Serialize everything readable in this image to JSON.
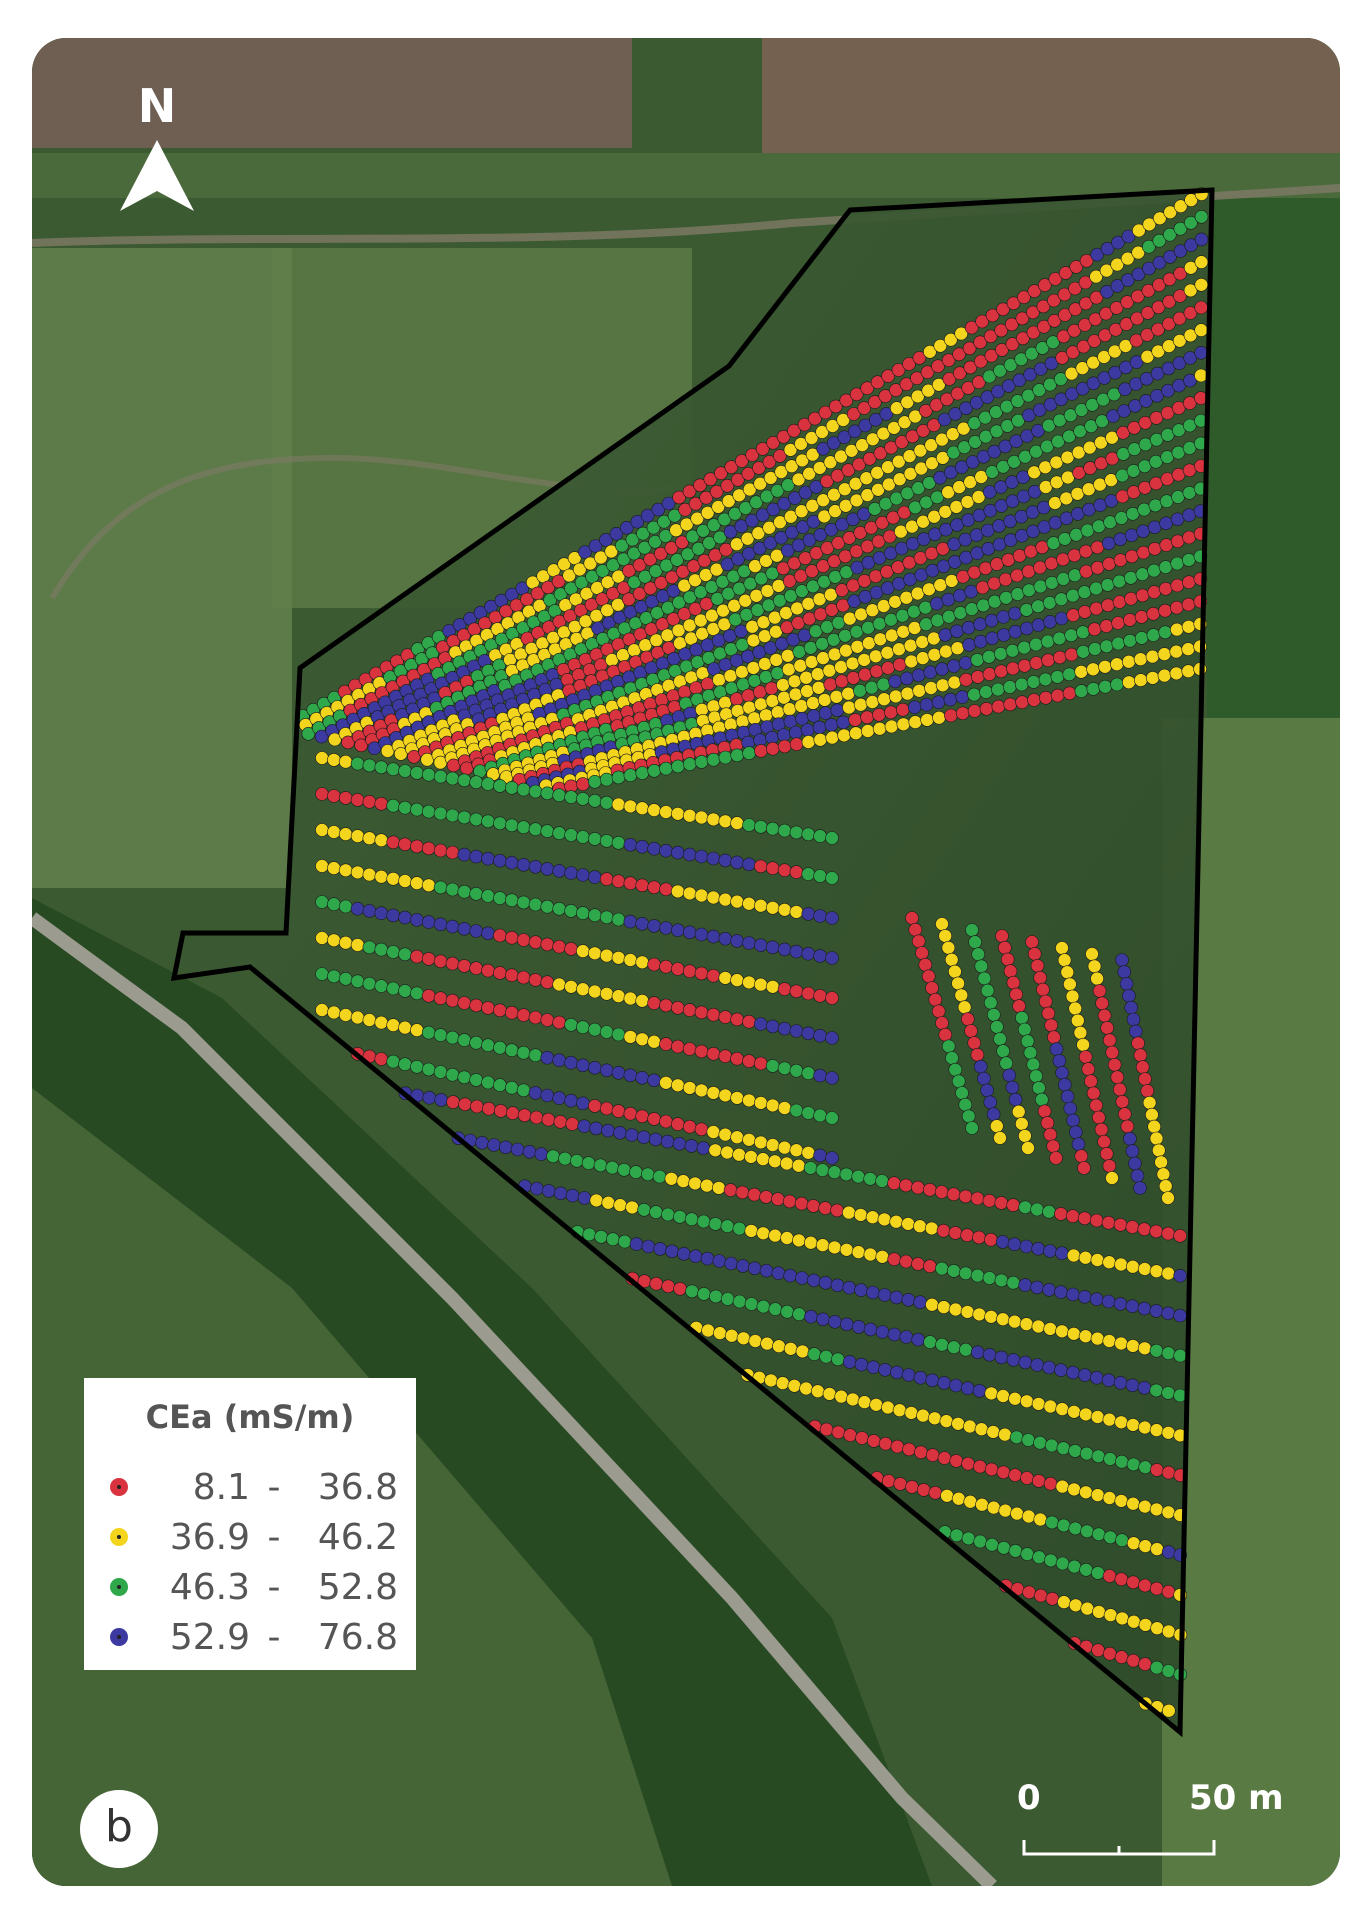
{
  "map": {
    "north_label": "N",
    "panel_label": "b",
    "icons": {
      "north": "north-arrow-icon",
      "point": "measurement-point-icon"
    }
  },
  "legend": {
    "title": "CEa (mS/m)",
    "classes": [
      {
        "low": "8.1",
        "dash": "-",
        "high": "36.8",
        "color": "#d8333f"
      },
      {
        "low": "36.9",
        "dash": "-",
        "high": "46.2",
        "color": "#f2d51c"
      },
      {
        "low": "46.3",
        "dash": "-",
        "high": "52.8",
        "color": "#2ea84a"
      },
      {
        "low": "52.9",
        "dash": "-",
        "high": "76.8",
        "color": "#3c3aa0"
      }
    ]
  },
  "scale_bar": {
    "start_label": "0",
    "end_label": "50 m"
  },
  "colors": {
    "field_boundary": "#000000",
    "imagery_vegetation": "#3f5e33",
    "imagery_bare_soil": "#6b5a4a",
    "road": "#9b9b90"
  }
}
